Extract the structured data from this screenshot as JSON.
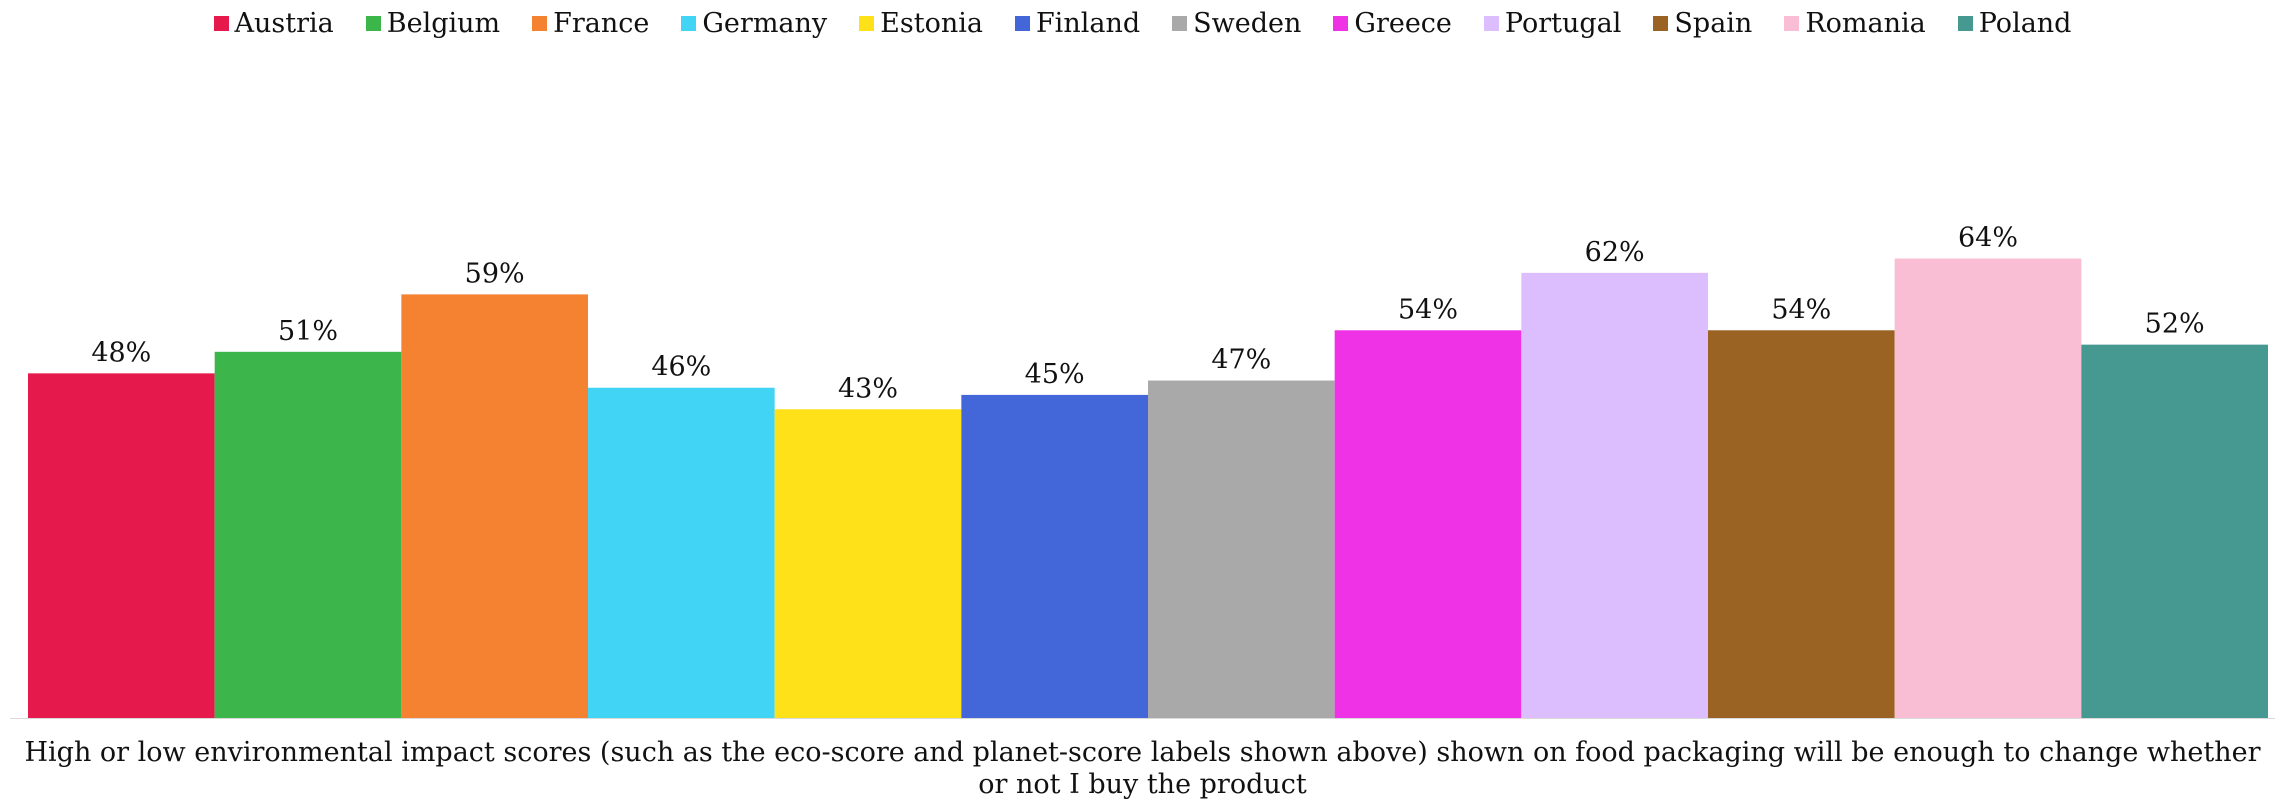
{
  "chart_data": {
    "type": "bar",
    "categories": [
      "Austria",
      "Belgium",
      "France",
      "Germany",
      "Estonia",
      "Finland",
      "Sweden",
      "Greece",
      "Portugal",
      "Spain",
      "Romania",
      "Poland"
    ],
    "values": [
      48,
      51,
      59,
      46,
      43,
      45,
      47,
      54,
      62,
      54,
      64,
      52
    ],
    "value_labels": [
      "48%",
      "51%",
      "59%",
      "46%",
      "43%",
      "45%",
      "47%",
      "54%",
      "62%",
      "54%",
      "64%",
      "52%"
    ],
    "colors": [
      "#E5194B",
      "#3CB54A",
      "#F58231",
      "#42D4F4",
      "#FFE119",
      "#4366D8",
      "#A9A9A9",
      "#F032E6",
      "#DCBEFF",
      "#9A6324",
      "#FABED4",
      "#469990"
    ],
    "legend": [
      "Austria",
      "Belgium",
      "France",
      "Germany",
      "Estonia",
      "Finland",
      "Sweden",
      "Greece",
      "Portugal",
      "Spain",
      "Romania",
      "Poland"
    ],
    "legend_position": "top",
    "xlabel": "High or low environmental impact scores (such as the eco-score and planet-score labels shown above) shown on food packaging will be enough to change whether or not I buy the product",
    "ylim": [
      0,
      100
    ],
    "grid": false
  }
}
